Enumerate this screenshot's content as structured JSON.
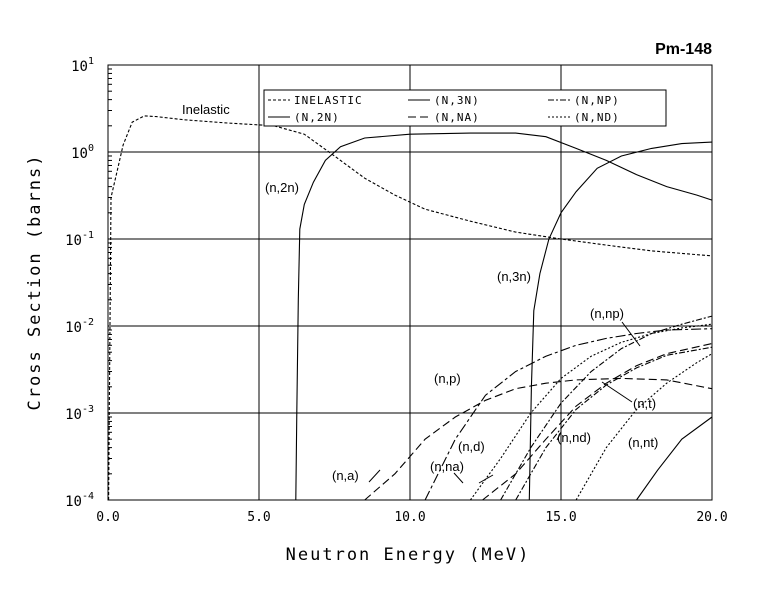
{
  "chart_data": {
    "type": "line",
    "title": "Pm-148",
    "xlabel": "Neutron Energy (MeV)",
    "ylabel": "Cross Section (barns)",
    "xlim": [
      0,
      20
    ],
    "ylim": [
      0.0001,
      10
    ],
    "yscale": "log",
    "grid": true,
    "x_ticks": [
      {
        "v": 0,
        "label": "0.0"
      },
      {
        "v": 5,
        "label": "5.0"
      },
      {
        "v": 10,
        "label": "10.0"
      },
      {
        "v": 15,
        "label": "15.0"
      },
      {
        "v": 20,
        "label": "20.0"
      }
    ],
    "y_ticks": [
      {
        "exp": -4,
        "base": "10",
        "sup": "-4"
      },
      {
        "exp": -3,
        "base": "10",
        "sup": "-3"
      },
      {
        "exp": -2,
        "base": "10",
        "sup": "-2"
      },
      {
        "exp": -1,
        "base": "10",
        "sup": "-1"
      },
      {
        "exp": 0,
        "base": "10",
        "sup": "0"
      },
      {
        "exp": 1,
        "base": "10",
        "sup": "1"
      }
    ],
    "legend_position": "top",
    "legend": [
      {
        "label": "INELASTIC",
        "dash": "3,2"
      },
      {
        "label": "(N,3N)",
        "dash": ""
      },
      {
        "label": "(N,NP)",
        "dash": "6,2,2,2"
      },
      {
        "label": "(N,2N)",
        "dash": ""
      },
      {
        "label": "(N,NA)",
        "dash": "8,4"
      },
      {
        "label": "(N,ND)",
        "dash": "2,2"
      }
    ],
    "series": [
      {
        "name": "Inelastic",
        "dash": "3,2",
        "label_text": "Inelastic",
        "points": [
          [
            0.02,
            0.0001
          ],
          [
            0.1,
            0.3
          ],
          [
            0.3,
            0.6
          ],
          [
            0.5,
            1.2
          ],
          [
            0.8,
            2.2
          ],
          [
            1.2,
            2.6
          ],
          [
            1.6,
            2.55
          ],
          [
            2.5,
            2.35
          ],
          [
            4,
            2.15
          ],
          [
            5.5,
            2.0
          ],
          [
            6.5,
            1.6
          ],
          [
            7.5,
            0.9
          ],
          [
            8.5,
            0.5
          ],
          [
            9.5,
            0.32
          ],
          [
            10.5,
            0.22
          ],
          [
            12,
            0.16
          ],
          [
            13.5,
            0.12
          ],
          [
            15,
            0.1
          ],
          [
            16.5,
            0.085
          ],
          [
            18,
            0.073
          ],
          [
            20,
            0.064
          ]
        ]
      },
      {
        "name": "(n,2n)",
        "dash": "",
        "label_text": "(n,2n)",
        "points": [
          [
            6.22,
            0.0001
          ],
          [
            6.25,
            0.001
          ],
          [
            6.3,
            0.02
          ],
          [
            6.35,
            0.13
          ],
          [
            6.5,
            0.25
          ],
          [
            6.8,
            0.45
          ],
          [
            7.2,
            0.8
          ],
          [
            7.7,
            1.15
          ],
          [
            8.5,
            1.45
          ],
          [
            10,
            1.6
          ],
          [
            12,
            1.65
          ],
          [
            13.5,
            1.65
          ],
          [
            14.5,
            1.5
          ],
          [
            15.5,
            1.1
          ],
          [
            16.5,
            0.8
          ],
          [
            17.5,
            0.55
          ],
          [
            18.5,
            0.4
          ],
          [
            19.5,
            0.32
          ],
          [
            20,
            0.28
          ]
        ]
      },
      {
        "name": "(n,3n)",
        "dash": "",
        "label_text": "(n,3n)",
        "points": [
          [
            13.95,
            0.0001
          ],
          [
            14.02,
            0.002
          ],
          [
            14.1,
            0.015
          ],
          [
            14.3,
            0.04
          ],
          [
            14.6,
            0.1
          ],
          [
            15,
            0.2
          ],
          [
            15.5,
            0.35
          ],
          [
            16.2,
            0.65
          ],
          [
            17,
            0.9
          ],
          [
            18,
            1.1
          ],
          [
            19,
            1.25
          ],
          [
            20,
            1.3
          ]
        ]
      },
      {
        "name": "(n,p)",
        "dash": "10,3,3,3",
        "label_text": "(n,p)",
        "points": [
          [
            10.5,
            0.0001
          ],
          [
            11.5,
            0.0005
          ],
          [
            12.5,
            0.0016
          ],
          [
            13.5,
            0.003
          ],
          [
            14.5,
            0.0045
          ],
          [
            15.5,
            0.006
          ],
          [
            16.5,
            0.0072
          ],
          [
            17.5,
            0.0082
          ],
          [
            18.5,
            0.009
          ],
          [
            20,
            0.0093
          ]
        ]
      },
      {
        "name": "(n,a)",
        "dash": "8,4",
        "label_text": "(n,a)",
        "points": [
          [
            8.5,
            0.0001
          ],
          [
            9.5,
            0.0002
          ],
          [
            10.5,
            0.0005
          ],
          [
            11.5,
            0.0009
          ],
          [
            12.5,
            0.0014
          ],
          [
            13.5,
            0.0019
          ],
          [
            14.5,
            0.0022
          ],
          [
            15.5,
            0.0024
          ],
          [
            17,
            0.0025
          ],
          [
            18.5,
            0.0024
          ],
          [
            20,
            0.0019
          ]
        ]
      },
      {
        "name": "(n,np)",
        "dash": "6,2,2,2",
        "label_text": "(n,np)",
        "points": [
          [
            13,
            0.0001
          ],
          [
            14,
            0.0004
          ],
          [
            15,
            0.0013
          ],
          [
            16,
            0.003
          ],
          [
            17,
            0.0055
          ],
          [
            18,
            0.0082
          ],
          [
            19,
            0.0105
          ],
          [
            20,
            0.013
          ]
        ]
      },
      {
        "name": "(n,d)",
        "dash": "2,2",
        "label_text": "(n,d)",
        "points": [
          [
            12,
            0.0001
          ],
          [
            13,
            0.0003
          ],
          [
            14,
            0.001
          ],
          [
            15,
            0.0025
          ],
          [
            16,
            0.0045
          ],
          [
            17,
            0.0065
          ],
          [
            18,
            0.0082
          ],
          [
            19,
            0.0095
          ],
          [
            20,
            0.0105
          ]
        ]
      },
      {
        "name": "(n,na)",
        "dash": "8,4",
        "label_text": "(n,na)",
        "points": [
          [
            12.4,
            0.0001
          ],
          [
            13.5,
            0.0002
          ],
          [
            14.5,
            0.0005
          ],
          [
            15.5,
            0.0012
          ],
          [
            16.5,
            0.0022
          ],
          [
            17.5,
            0.0035
          ],
          [
            18.5,
            0.0048
          ],
          [
            20,
            0.0063
          ]
        ]
      },
      {
        "name": "(n,nd)",
        "dash": "2,2",
        "label_text": "(n,nd)",
        "points": [
          [
            15.5,
            0.0001
          ],
          [
            16.5,
            0.0004
          ],
          [
            17.5,
            0.0011
          ],
          [
            18.5,
            0.0022
          ],
          [
            19.5,
            0.0038
          ],
          [
            20,
            0.0048
          ]
        ]
      },
      {
        "name": "(n,t)",
        "dash": "6,2,2,2",
        "label_text": "(n,t)",
        "points": [
          [
            13.5,
            0.0001
          ],
          [
            14.5,
            0.0004
          ],
          [
            15.5,
            0.0011
          ],
          [
            16.5,
            0.0021
          ],
          [
            17.5,
            0.0033
          ],
          [
            18.5,
            0.0046
          ],
          [
            20,
            0.0057
          ]
        ]
      },
      {
        "name": "(n,nt)",
        "dash": "",
        "label_text": "(n,nt)",
        "points": [
          [
            17.5,
            0.0001
          ],
          [
            18.2,
            0.00022
          ],
          [
            19,
            0.0005
          ],
          [
            20,
            0.0009
          ]
        ]
      }
    ]
  }
}
